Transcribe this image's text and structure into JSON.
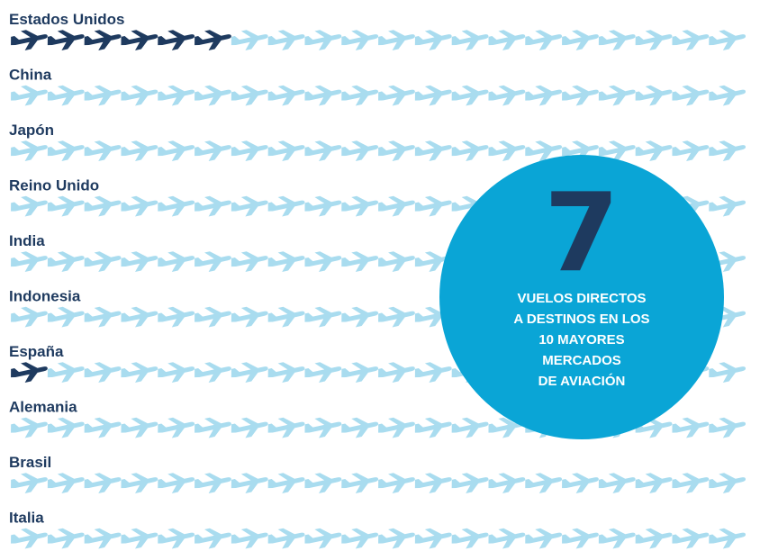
{
  "chart_data": {
    "type": "pictogram",
    "unit_icon": "airplane-icon",
    "icons_per_row": 20,
    "categories": [
      "Estados Unidos",
      "China",
      "Japón",
      "Reino Unido",
      "India",
      "Indonesia",
      "España",
      "Alemania",
      "Brasil",
      "Italia"
    ],
    "values": [
      6,
      0,
      0,
      0,
      0,
      0,
      1,
      0,
      0,
      0
    ],
    "total": {
      "value": "7",
      "caption_lines": [
        "VUELOS DIRECTOS",
        "A DESTINOS EN LOS",
        "10 MAYORES",
        "MERCADOS",
        "DE AVIACIÓN"
      ]
    }
  },
  "colors": {
    "filled": "#1e3a5f",
    "empty": "#a9dcef",
    "bubble": "#0aa5d6",
    "number": "#1e3a5f",
    "label": "#1e3a5f",
    "caption": "#ffffff"
  }
}
